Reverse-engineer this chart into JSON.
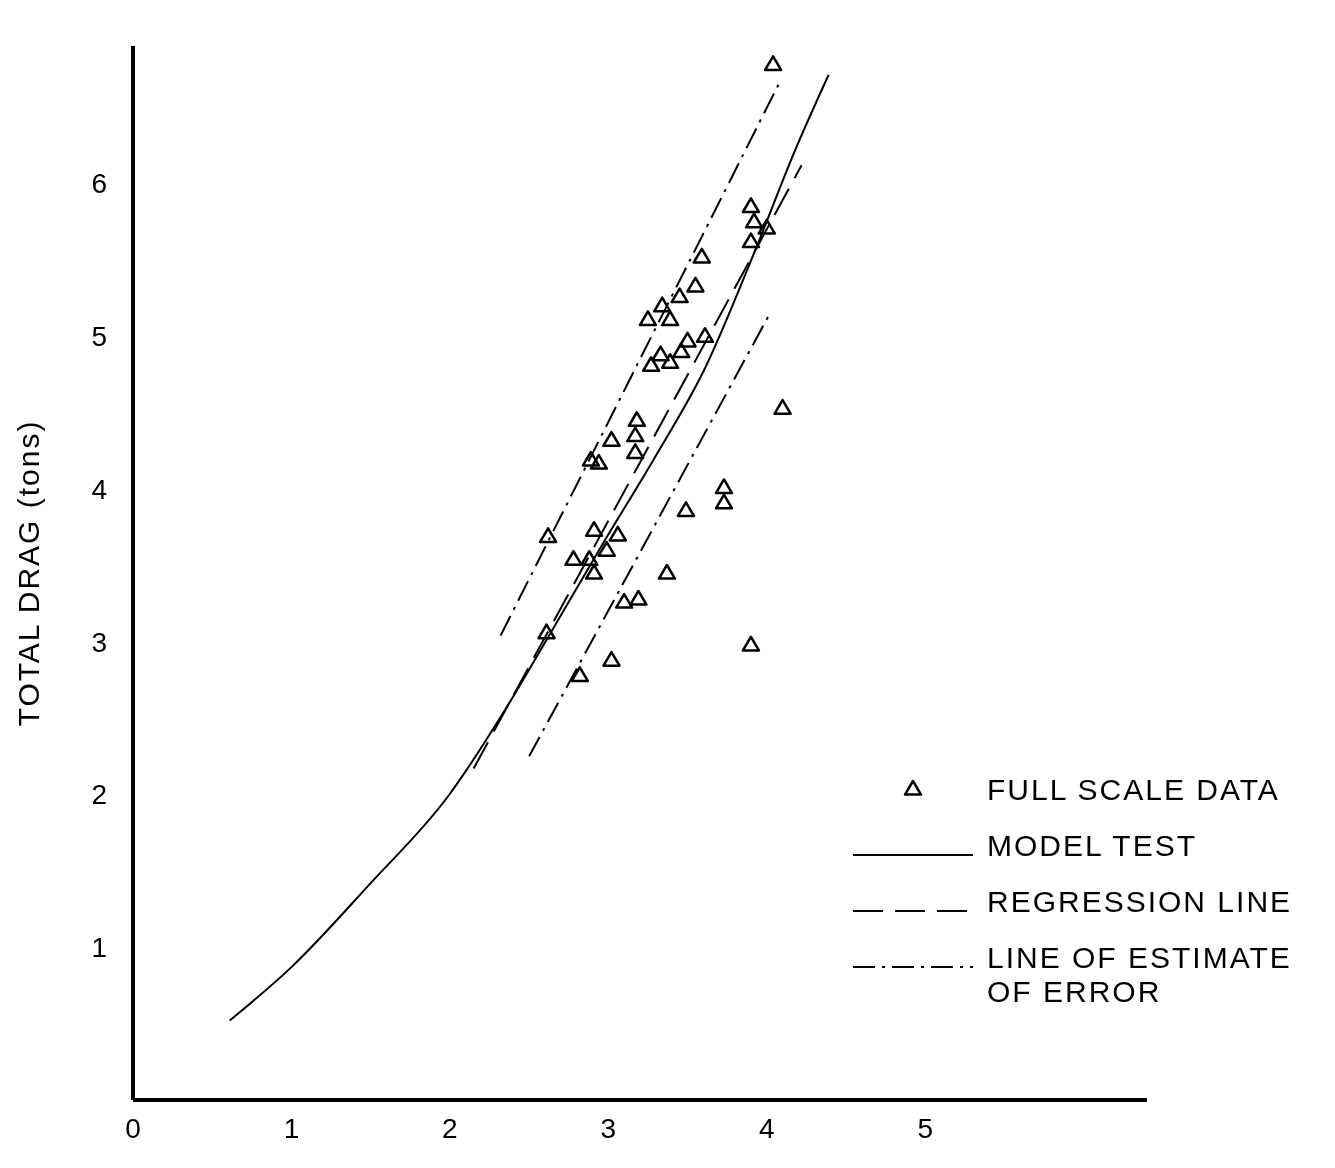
{
  "chart_data": {
    "type": "scatter",
    "ylabel": "TOTAL DRAG (tons)",
    "xlim": [
      0,
      6.4
    ],
    "xticks": [
      0,
      1,
      2,
      3,
      4,
      5
    ],
    "ylim": [
      0,
      6.9
    ],
    "yticks": [
      1,
      2,
      3,
      4,
      5,
      6
    ],
    "grid": false,
    "legend": "bottom right",
    "series": [
      {
        "name": "FULL SCALE DATA",
        "marker": "triangle",
        "color": "#000000",
        "x": [
          4.04,
          3.9,
          3.92,
          4.0,
          3.9,
          3.59,
          3.55,
          3.45,
          3.34,
          3.25,
          3.39,
          3.61,
          3.5,
          3.46,
          3.33,
          3.39,
          3.27,
          3.18,
          3.17,
          3.17,
          3.02,
          2.89,
          2.94,
          3.73,
          3.73,
          4.1,
          3.49,
          2.62,
          2.91,
          3.06,
          2.99,
          2.78,
          2.88,
          2.91,
          3.37,
          3.1,
          3.19,
          2.61,
          3.9,
          3.02,
          2.82
        ],
        "values": [
          6.78,
          5.85,
          5.75,
          5.71,
          5.62,
          5.52,
          5.33,
          5.26,
          5.2,
          5.11,
          5.11,
          5.0,
          4.97,
          4.9,
          4.88,
          4.83,
          4.81,
          4.45,
          4.35,
          4.24,
          4.32,
          4.19,
          4.17,
          4.01,
          3.91,
          4.53,
          3.86,
          3.69,
          3.73,
          3.7,
          3.6,
          3.54,
          3.54,
          3.45,
          3.45,
          3.26,
          3.28,
          3.06,
          2.98,
          2.88,
          2.78
        ]
      },
      {
        "name": "MODEL TEST",
        "type": "line",
        "line_style": "solid",
        "marker": "none",
        "color": "#000000",
        "x": [
          0.61,
          1.0,
          1.5,
          1.99,
          2.34,
          2.62,
          2.97,
          3.29,
          3.61,
          3.93,
          4.18,
          4.39
        ],
        "values": [
          0.52,
          0.87,
          1.42,
          1.99,
          2.54,
          3.03,
          3.65,
          4.2,
          4.79,
          5.57,
          6.22,
          6.71
        ]
      },
      {
        "name": "REGRESSION LINE",
        "type": "line",
        "line_style": "dashed",
        "marker": "none",
        "color": "#000000",
        "x": [
          2.15,
          4.22
        ],
        "values": [
          2.17,
          6.12
        ]
      },
      {
        "name": "LINE OF ESTIMATE OF ERROR",
        "type": "line",
        "line_style": "dotted",
        "marker": "none",
        "color": "#000000",
        "x": [
          2.32,
          4.09
        ],
        "values": [
          3.04,
          6.68
        ]
      },
      {
        "type": "line",
        "line_style": "dotted",
        "marker": "none",
        "color": "#000000",
        "x": [
          2.5,
          4.01
        ],
        "values": [
          2.25,
          5.13
        ]
      }
    ]
  }
}
